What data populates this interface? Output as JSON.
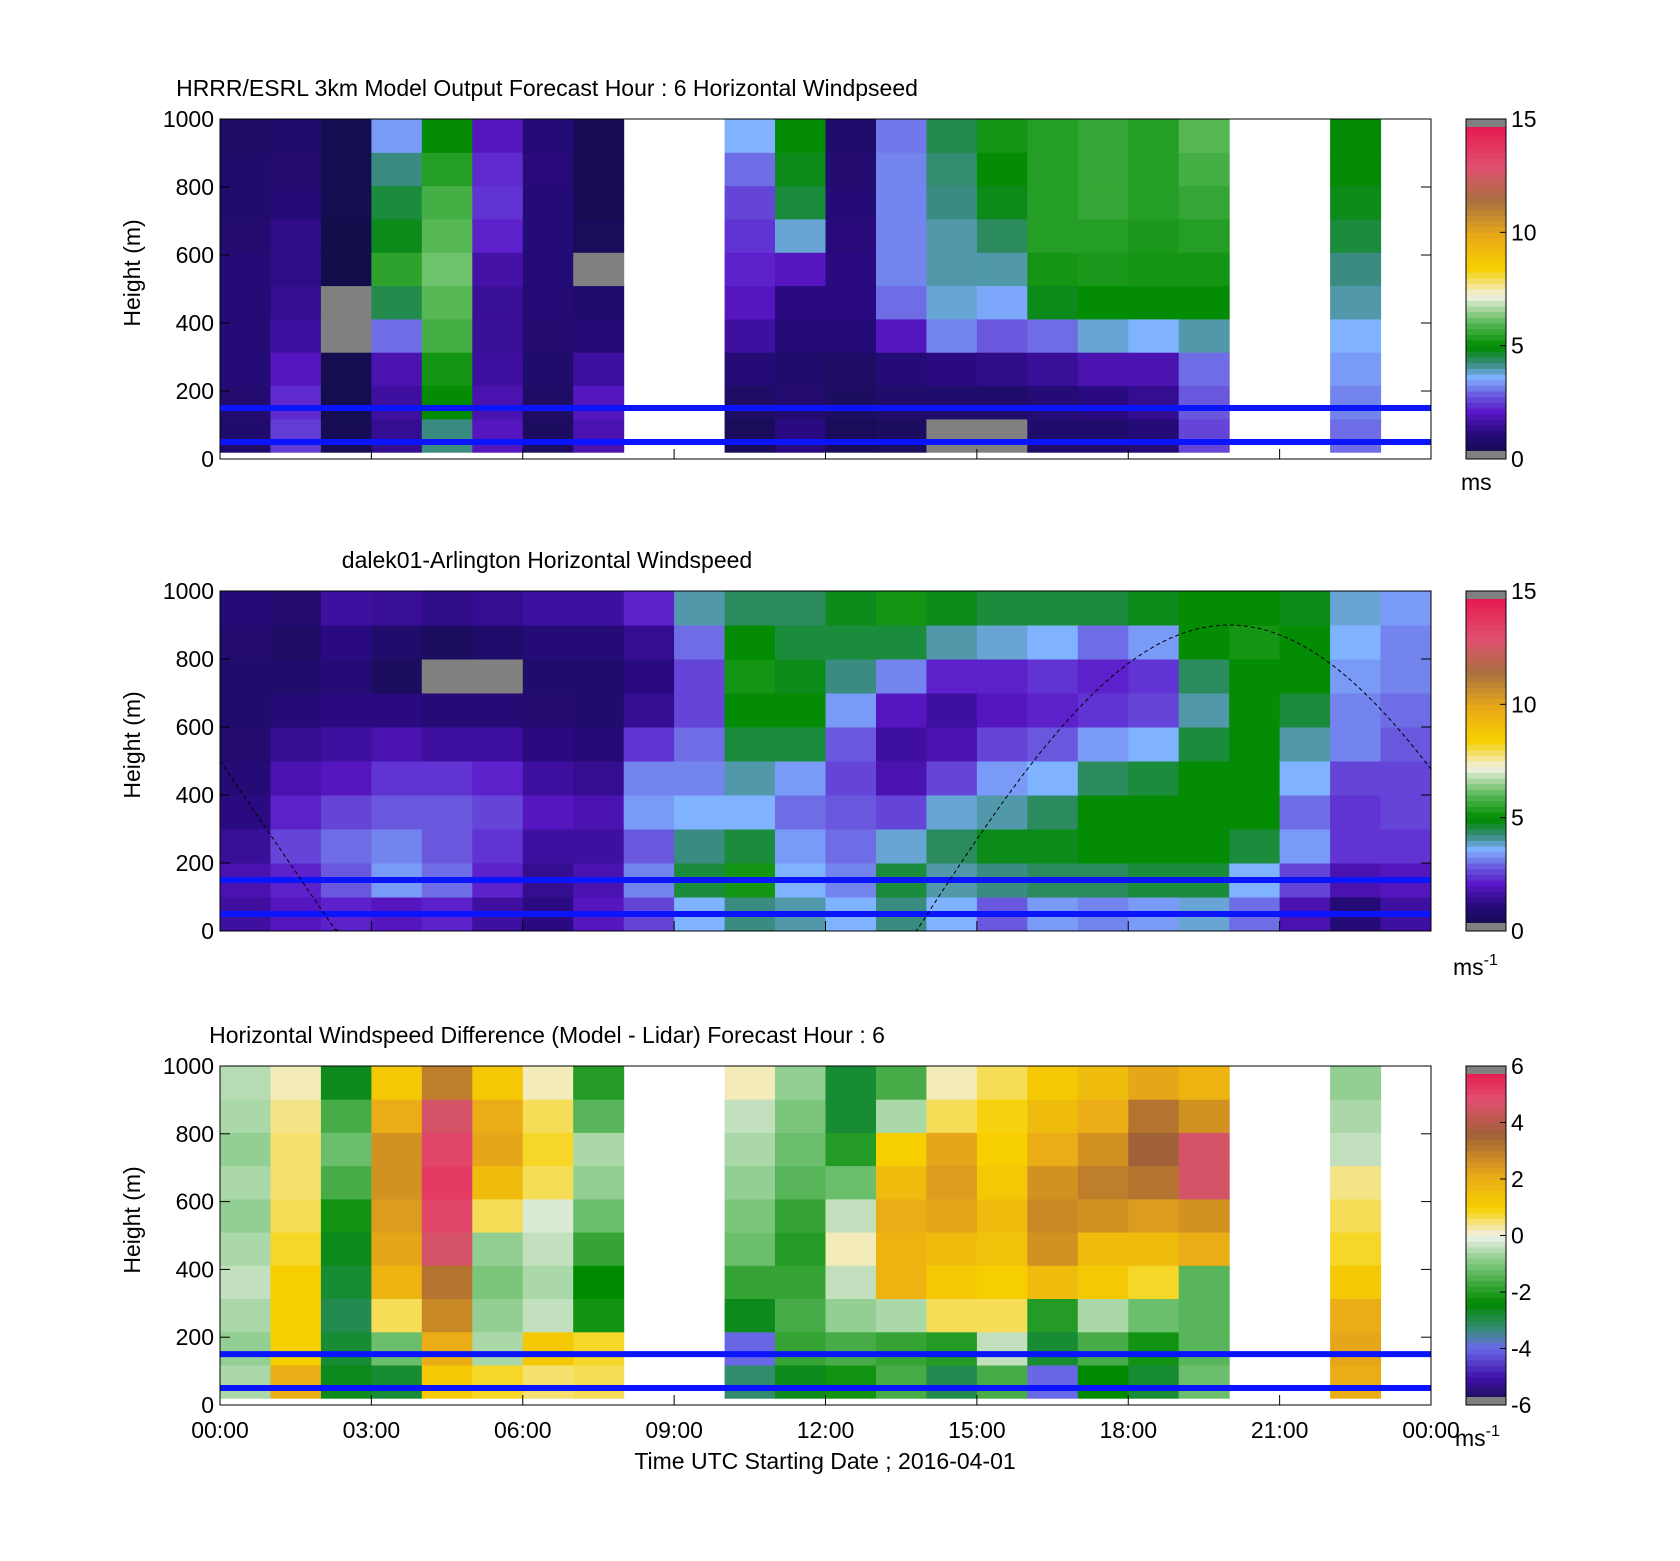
{
  "figure": {
    "xlabel": "Time UTC  Starting Date ; 2016-04-01",
    "x_ticks": [
      "00:00",
      "03:00",
      "06:00",
      "09:00",
      "12:00",
      "15:00",
      "18:00",
      "21:00",
      "00:00"
    ]
  },
  "chart_data": [
    {
      "type": "heatmap",
      "title": "HRRR/ESRL 3km Model Output   Forecast Hour : 6 Horizontal Windpseed",
      "ylabel": "Height (m)",
      "ylim": [
        0,
        1000
      ],
      "y_ticks": [
        "0",
        "200",
        "400",
        "600",
        "800",
        "1000"
      ],
      "xlim_hours": [
        0,
        24
      ],
      "colorbar": {
        "ticks": [
          "0",
          "5",
          "10",
          "15"
        ],
        "range": [
          0,
          15
        ],
        "unit_label": "ms",
        "unit_sup": "",
        "palette": "speed"
      },
      "reference_lines_m": [
        50,
        150
      ],
      "columns": [
        {
          "hour": 0.5,
          "z_top": 1000,
          "values": [
            0.8,
            0.9,
            1.0,
            1.0,
            1.0,
            1.0,
            0.9,
            0.8,
            0.8,
            0.7
          ]
        },
        {
          "hour": 1.5,
          "z_top": 1000,
          "values": [
            2.5,
            2.3,
            2.0,
            1.6,
            1.4,
            1.3,
            1.3,
            1.0,
            0.9,
            0.8
          ]
        },
        {
          "hour": 2.5,
          "z_top": 1000,
          "values": [
            0.4,
            0.3,
            0.3,
            -1,
            -1,
            0.2,
            0.2,
            0.3,
            0.3,
            0.3
          ]
        },
        {
          "hour": 3.5,
          "z_top": 1000,
          "values": [
            1.4,
            1.6,
            1.8,
            3.0,
            4.5,
            5.5,
            4.8,
            4.6,
            4.2,
            3.4
          ]
        },
        {
          "hour": 4.5,
          "z_top": 1000,
          "values": [
            4.2,
            5.0,
            5.2,
            5.8,
            6.0,
            6.2,
            6.0,
            5.8,
            5.4,
            5.0
          ]
        },
        {
          "hour": 5.5,
          "z_top": 1000,
          "values": [
            2.0,
            1.8,
            1.6,
            1.5,
            1.5,
            1.7,
            2.2,
            2.4,
            2.3,
            2.0
          ]
        },
        {
          "hour": 6.5,
          "z_top": 1000,
          "values": [
            0.6,
            0.7,
            0.8,
            0.9,
            1.0,
            1.0,
            1.0,
            1.0,
            1.1,
            1.0
          ]
        },
        {
          "hour": 7.5,
          "z_top": 1000,
          "values": [
            1.8,
            2.0,
            1.6,
            1.0,
            0.8,
            -1,
            0.5,
            0.4,
            0.4,
            0.4
          ]
        },
        {
          "hour": 10.5,
          "z_top": 1000,
          "values": [
            0.5,
            0.7,
            1.0,
            1.6,
            2.0,
            2.2,
            2.4,
            2.6,
            3.0,
            3.6
          ]
        },
        {
          "hour": 11.5,
          "z_top": 1000,
          "values": [
            1.2,
            0.9,
            0.8,
            1.0,
            1.2,
            2.0,
            3.8,
            4.6,
            4.8,
            5.0
          ]
        },
        {
          "hour": 12.5,
          "z_top": 1000,
          "values": [
            0.5,
            0.6,
            0.7,
            1.0,
            1.2,
            1.2,
            1.1,
            1.0,
            0.9,
            0.8
          ]
        },
        {
          "hour": 13.5,
          "z_top": 1000,
          "values": [
            0.6,
            0.8,
            1.0,
            2.0,
            3.0,
            3.2,
            3.2,
            3.2,
            3.2,
            3.1
          ]
        },
        {
          "hour": 14.5,
          "z_top": 1000,
          "values": [
            -1,
            0.8,
            1.2,
            3.2,
            3.8,
            4.0,
            4.0,
            4.2,
            4.3,
            4.5
          ]
        },
        {
          "hour": 15.5,
          "z_top": 1000,
          "values": [
            -1,
            0.8,
            1.3,
            2.8,
            3.5,
            4.0,
            4.4,
            4.8,
            5.0,
            5.2
          ]
        },
        {
          "hour": 16.5,
          "z_top": 1000,
          "values": [
            0.8,
            1.0,
            1.5,
            3.0,
            4.8,
            5.2,
            5.4,
            5.4,
            5.4,
            5.4
          ]
        },
        {
          "hour": 17.5,
          "z_top": 1000,
          "values": [
            0.8,
            1.2,
            1.8,
            3.8,
            5.0,
            5.3,
            5.4,
            5.6,
            5.6,
            5.6
          ]
        },
        {
          "hour": 18.5,
          "z_top": 1000,
          "values": [
            1.0,
            1.4,
            1.8,
            3.6,
            5.0,
            5.2,
            5.3,
            5.4,
            5.4,
            5.4
          ]
        },
        {
          "hour": 19.5,
          "z_top": 1000,
          "values": [
            2.6,
            2.8,
            3.0,
            4.0,
            5.0,
            5.2,
            5.4,
            5.6,
            5.8,
            6.0
          ]
        },
        {
          "hour": 22.5,
          "z_top": 1000,
          "values": [
            3.0,
            3.2,
            3.4,
            3.6,
            4.0,
            4.2,
            4.6,
            4.8,
            5.0,
            5.0
          ]
        }
      ]
    },
    {
      "type": "heatmap",
      "title": "dalek01-Arlington  Horizontal Windspeed",
      "ylabel": "Height (m)",
      "ylim": [
        0,
        1000
      ],
      "y_ticks": [
        "0",
        "200",
        "400",
        "600",
        "800",
        "1000"
      ],
      "xlim_hours": [
        0,
        24
      ],
      "colorbar": {
        "ticks": [
          "0",
          "5",
          "10",
          "15"
        ],
        "range": [
          0,
          15
        ],
        "unit_label": "ms",
        "unit_sup": "-1",
        "palette": "speed"
      },
      "reference_lines_m": [
        50,
        150
      ],
      "grid_hours": [
        0,
        1,
        2,
        3,
        4,
        5,
        6,
        7,
        8,
        9,
        10,
        11,
        12,
        13,
        14,
        15,
        16,
        17,
        18,
        19,
        20,
        21,
        22,
        23
      ],
      "grid_heights_m": [
        50,
        150,
        250,
        350,
        450,
        550,
        650,
        750,
        850,
        950
      ],
      "values": [
        [
          1.6,
          1.8,
          1.5,
          1.2,
          1.0,
          0.9,
          0.8,
          0.8,
          0.9,
          1.0
        ],
        [
          2.0,
          2.2,
          2.6,
          2.2,
          1.8,
          1.4,
          1.0,
          0.8,
          0.7,
          0.9
        ],
        [
          2.2,
          2.8,
          3.0,
          2.6,
          2.0,
          1.6,
          1.2,
          1.0,
          1.2,
          1.6
        ],
        [
          2.0,
          3.4,
          3.2,
          2.8,
          2.4,
          1.8,
          1.2,
          0.6,
          0.8,
          1.5
        ],
        [
          2.2,
          3.0,
          2.8,
          2.8,
          2.4,
          1.6,
          1.0,
          -1,
          0.6,
          1.3
        ],
        [
          1.6,
          2.2,
          2.4,
          2.6,
          2.2,
          1.6,
          1.0,
          -1,
          0.8,
          1.4
        ],
        [
          1.2,
          1.4,
          1.6,
          2.0,
          1.6,
          1.2,
          0.9,
          0.8,
          1.0,
          1.6
        ],
        [
          2.0,
          1.8,
          1.6,
          1.8,
          1.4,
          1.0,
          0.8,
          0.8,
          1.0,
          1.6
        ],
        [
          2.6,
          3.2,
          2.8,
          3.4,
          3.2,
          2.4,
          1.4,
          1.2,
          1.4,
          2.2
        ],
        [
          3.6,
          4.6,
          4.2,
          3.6,
          3.2,
          3.0,
          2.6,
          2.6,
          3.0,
          4.0
        ],
        [
          4.2,
          5.2,
          4.6,
          3.6,
          4.0,
          4.6,
          5.0,
          5.2,
          5.0,
          4.4
        ],
        [
          4.0,
          3.6,
          3.4,
          3.0,
          3.4,
          4.6,
          5.0,
          4.8,
          4.6,
          4.4
        ],
        [
          3.6,
          3.2,
          3.0,
          2.8,
          2.6,
          2.8,
          3.4,
          4.2,
          4.6,
          4.8
        ],
        [
          4.2,
          4.6,
          3.8,
          2.6,
          1.8,
          1.6,
          2.0,
          3.2,
          4.6,
          5.2
        ],
        [
          3.6,
          4.0,
          4.4,
          3.8,
          2.6,
          1.8,
          1.6,
          2.2,
          4.0,
          4.8
        ],
        [
          2.8,
          4.2,
          4.8,
          4.0,
          3.4,
          2.6,
          2.0,
          2.2,
          3.8,
          4.6
        ],
        [
          3.4,
          4.4,
          4.8,
          4.4,
          3.6,
          2.8,
          2.2,
          2.4,
          3.6,
          4.6
        ],
        [
          3.2,
          4.4,
          5.0,
          5.0,
          4.4,
          3.4,
          2.4,
          2.2,
          3.0,
          4.6
        ],
        [
          3.4,
          4.6,
          5.0,
          5.0,
          4.6,
          3.6,
          2.6,
          2.4,
          3.4,
          4.8
        ],
        [
          3.8,
          4.6,
          5.0,
          5.0,
          5.0,
          4.6,
          4.0,
          4.4,
          5.0,
          5.0
        ],
        [
          3.0,
          3.6,
          4.6,
          5.0,
          5.0,
          5.0,
          5.0,
          5.0,
          5.2,
          5.0
        ],
        [
          1.8,
          2.6,
          3.4,
          3.0,
          3.6,
          4.0,
          4.6,
          5.0,
          5.0,
          4.8
        ],
        [
          1.0,
          1.8,
          2.4,
          2.4,
          2.6,
          3.2,
          3.2,
          3.4,
          3.6,
          3.8
        ],
        [
          1.6,
          2.0,
          2.4,
          2.6,
          2.6,
          2.8,
          3.0,
          3.2,
          3.2,
          3.4
        ]
      ]
    },
    {
      "type": "heatmap",
      "title": "Horizontal Windspeed Difference (Model - Lidar) Forecast Hour : 6",
      "ylabel": "Height (m)",
      "ylim": [
        0,
        1000
      ],
      "y_ticks": [
        "0",
        "200",
        "400",
        "600",
        "800",
        "1000"
      ],
      "xlim_hours": [
        0,
        24
      ],
      "colorbar": {
        "ticks": [
          "-6",
          "-4",
          "-2",
          "0",
          "2",
          "4",
          "6"
        ],
        "range": [
          -6,
          6
        ],
        "unit_label": "ms",
        "unit_sup": "-1",
        "palette": "diff"
      },
      "reference_lines_m": [
        50,
        150
      ],
      "columns": [
        {
          "hour": 0.5,
          "z_top": 1000,
          "values": [
            -0.6,
            -0.8,
            -0.6,
            -0.4,
            -0.6,
            -0.8,
            -0.6,
            -0.8,
            -0.6,
            -0.5
          ]
        },
        {
          "hour": 1.5,
          "z_top": 1000,
          "values": [
            2.0,
            1.0,
            1.0,
            1.0,
            0.8,
            0.6,
            0.5,
            0.5,
            0.4,
            0.2
          ]
        },
        {
          "hour": 2.5,
          "z_top": 1000,
          "values": [
            -2.6,
            -2.8,
            -3.0,
            -2.8,
            -2.6,
            -2.2,
            -1.6,
            -1.2,
            -1.6,
            -2.6
          ]
        },
        {
          "hour": 3.5,
          "z_top": 1000,
          "values": [
            -2.8,
            -1.2,
            0.6,
            1.8,
            2.2,
            2.4,
            2.6,
            2.6,
            2.0,
            1.2
          ]
        },
        {
          "hour": 4.5,
          "z_top": 1000,
          "values": [
            1.2,
            2.0,
            2.8,
            3.2,
            4.6,
            5.0,
            5.2,
            5.0,
            4.6,
            3.0
          ]
        },
        {
          "hour": 5.5,
          "z_top": 1000,
          "values": [
            0.8,
            -0.6,
            -0.8,
            -1.0,
            -0.8,
            0.6,
            1.6,
            2.2,
            2.0,
            1.2
          ]
        },
        {
          "hour": 6.5,
          "z_top": 1000,
          "values": [
            0.5,
            1.2,
            -0.4,
            -0.6,
            -0.4,
            -0.2,
            0.6,
            0.8,
            0.6,
            0.2
          ]
        },
        {
          "hour": 7.5,
          "z_top": 1000,
          "values": [
            0.6,
            0.8,
            -2.2,
            -2.4,
            -1.8,
            -1.2,
            -0.8,
            -0.6,
            -1.4,
            -2.0
          ]
        },
        {
          "hour": 10.5,
          "z_top": 1000,
          "values": [
            -3.2,
            -4.0,
            -2.6,
            -1.8,
            -1.2,
            -1.0,
            -0.8,
            -0.6,
            -0.4,
            0.2
          ]
        },
        {
          "hour": 11.5,
          "z_top": 1000,
          "values": [
            -2.6,
            -1.8,
            -1.6,
            -1.8,
            -2.0,
            -1.8,
            -1.4,
            -1.2,
            -1.0,
            -0.8
          ]
        },
        {
          "hour": 12.5,
          "z_top": 1000,
          "values": [
            -2.2,
            -1.6,
            -0.8,
            -0.4,
            0.2,
            -0.4,
            -1.2,
            -2.0,
            -2.8,
            -2.8
          ]
        },
        {
          "hour": 13.5,
          "z_top": 1000,
          "values": [
            -1.6,
            -1.8,
            -0.6,
            1.8,
            1.8,
            2.0,
            1.6,
            1.0,
            -0.6,
            -1.6
          ]
        },
        {
          "hour": 14.5,
          "z_top": 1000,
          "values": [
            -3.0,
            -2.0,
            0.6,
            1.2,
            1.6,
            2.2,
            2.4,
            2.2,
            0.6,
            0.2
          ]
        },
        {
          "hour": 15.5,
          "z_top": 1000,
          "values": [
            -1.6,
            -0.4,
            0.6,
            1.0,
            1.4,
            1.6,
            1.2,
            1.0,
            0.9,
            0.6
          ]
        },
        {
          "hour": 16.5,
          "z_top": 1000,
          "values": [
            -4.0,
            -2.8,
            -2.0,
            1.6,
            2.6,
            2.8,
            2.6,
            2.0,
            1.6,
            1.2
          ]
        },
        {
          "hour": 17.5,
          "z_top": 1000,
          "values": [
            -2.4,
            -1.6,
            -0.6,
            1.2,
            1.6,
            2.6,
            3.0,
            2.6,
            2.0,
            1.6
          ]
        },
        {
          "hour": 18.5,
          "z_top": 1000,
          "values": [
            -2.8,
            -2.2,
            -1.2,
            0.8,
            1.6,
            2.4,
            3.2,
            3.6,
            3.2,
            2.2
          ]
        },
        {
          "hour": 19.5,
          "z_top": 1000,
          "values": [
            -1.2,
            -1.4,
            -1.4,
            -1.4,
            2.0,
            2.6,
            4.6,
            4.6,
            2.6,
            1.8
          ]
        },
        {
          "hour": 22.5,
          "z_top": 1000,
          "values": [
            2.0,
            2.2,
            2.0,
            1.2,
            0.8,
            0.6,
            0.4,
            -0.4,
            -0.6,
            -0.8
          ]
        }
      ]
    }
  ]
}
